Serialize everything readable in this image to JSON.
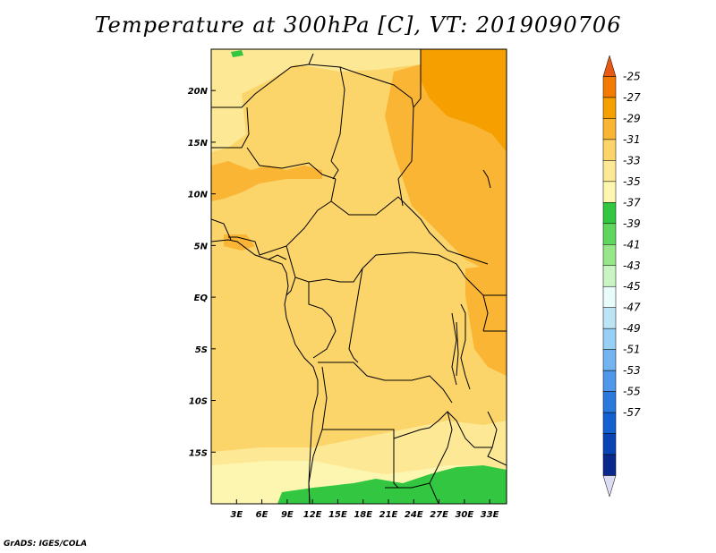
{
  "title": "Temperature at 300hPa [C], VT: 2019090706",
  "credit": "GrADS: IGES/COLA",
  "map": {
    "lon_range": [
      0,
      35
    ],
    "lat_range": [
      -20,
      24
    ],
    "lat_ticks": [
      {
        "value": 20,
        "label": "20N"
      },
      {
        "value": 15,
        "label": "15N"
      },
      {
        "value": 10,
        "label": "10N"
      },
      {
        "value": 5,
        "label": "5N"
      },
      {
        "value": 0,
        "label": "EQ"
      },
      {
        "value": -5,
        "label": "5S"
      },
      {
        "value": -10,
        "label": "10S"
      },
      {
        "value": -15,
        "label": "15S"
      }
    ],
    "lon_ticks": [
      {
        "value": 3,
        "label": "3E"
      },
      {
        "value": 6,
        "label": "6E"
      },
      {
        "value": 9,
        "label": "9E"
      },
      {
        "value": 12,
        "label": "12E"
      },
      {
        "value": 15,
        "label": "15E"
      },
      {
        "value": 18,
        "label": "18E"
      },
      {
        "value": 21,
        "label": "21E"
      },
      {
        "value": 24,
        "label": "24E"
      },
      {
        "value": 27,
        "label": "27E"
      },
      {
        "value": 30,
        "label": "30E"
      },
      {
        "value": 33,
        "label": "33E"
      }
    ]
  },
  "colorbar": {
    "levels": [
      "-25",
      "-27",
      "-29",
      "-31",
      "-33",
      "-35",
      "-37",
      "-39",
      "-41",
      "-43",
      "-45",
      "-47",
      "-49",
      "-51",
      "-53",
      "-55",
      "-57"
    ],
    "colors": [
      "#e85a13",
      "#f47a06",
      "#f5a000",
      "#fab535",
      "#fbd46a",
      "#fde895",
      "#fdf6b0",
      "#33c741",
      "#5fd75e",
      "#98e68a",
      "#c8f5c2",
      "#e8fcfb",
      "#bde4f5",
      "#98cff4",
      "#73b3ef",
      "#4f97e8",
      "#2c79de",
      "#1460d0",
      "#0a44b4",
      "#09298c",
      "#dcdcf5"
    ]
  }
}
